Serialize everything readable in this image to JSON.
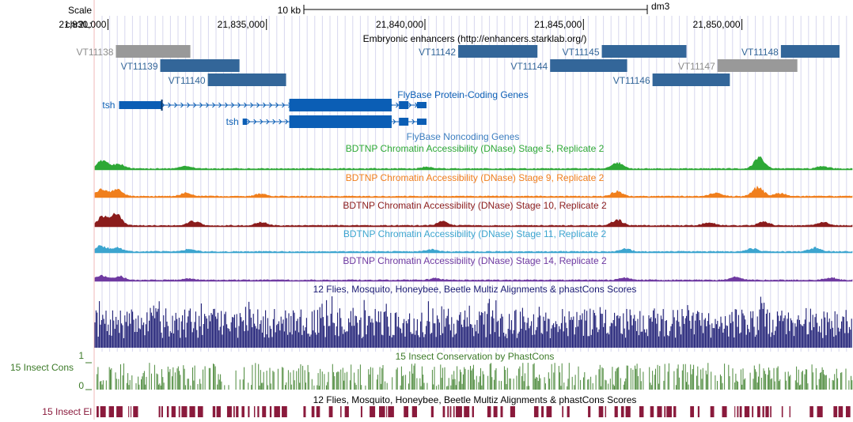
{
  "ruler": {
    "scale_label": "Scale",
    "chrom_label": "chr2L:",
    "scale_bar_text": "10 kb",
    "assembly": "dm3",
    "ticks": [
      {
        "label": "21,830,000",
        "pos": 21830000
      },
      {
        "label": "21,835,000",
        "pos": 21835000
      },
      {
        "label": "21,840,000",
        "pos": 21840000
      },
      {
        "label": "21,845,000",
        "pos": 21845000
      },
      {
        "label": "21,850,000",
        "pos": 21850000
      }
    ]
  },
  "enhancers": {
    "title": "Embryonic enhancers (http://enhancers.starklab.org/)",
    "items": [
      {
        "name": "VT11138",
        "color": "#999999",
        "label_side": "left",
        "row": 0,
        "start": 21830250,
        "end": 21832600
      },
      {
        "name": "VT11139",
        "color": "#336699",
        "label_side": "left",
        "row": 1,
        "start": 21831650,
        "end": 21834150
      },
      {
        "name": "VT11140",
        "color": "#336699",
        "label_side": "left",
        "row": 2,
        "start": 21833150,
        "end": 21835620
      },
      {
        "name": "VT11142",
        "color": "#336699",
        "label_side": "left",
        "row": 0,
        "start": 21841050,
        "end": 21843550
      },
      {
        "name": "VT11144",
        "color": "#336699",
        "label_side": "left",
        "row": 1,
        "start": 21843950,
        "end": 21846380
      },
      {
        "name": "VT11145",
        "color": "#336699",
        "label_side": "left",
        "row": 0,
        "start": 21845580,
        "end": 21848250
      },
      {
        "name": "VT11146",
        "color": "#336699",
        "label_side": "left",
        "row": 2,
        "start": 21847180,
        "end": 21849620
      },
      {
        "name": "VT11147",
        "color": "#999999",
        "label_side": "left",
        "row": 1,
        "start": 21849230,
        "end": 21851750
      },
      {
        "name": "VT11148",
        "color": "#336699",
        "label_side": "left",
        "row": 0,
        "start": 21851230,
        "end": 21853080
      }
    ]
  },
  "genes": {
    "title": "FlyBase Protein-Coding Genes",
    "noncoding_title": "FlyBase Noncoding Genes",
    "color": "#0b5eb5",
    "items": [
      {
        "name": "tsh",
        "thin_start": 21830350,
        "cds_start": 21831700,
        "cds_end": 21839200,
        "thin_end": 21840050,
        "exons": [
          [
            21830350,
            21831700
          ],
          [
            21835720,
            21838950
          ],
          [
            21839180,
            21839480
          ],
          [
            21839750,
            21840050
          ]
        ]
      },
      {
        "name": "tsh",
        "thin_start": 21834250,
        "cds_start": 21834390,
        "cds_end": 21839200,
        "thin_end": 21840050,
        "exons": [
          [
            21834250,
            21834390
          ],
          [
            21835720,
            21838950
          ],
          [
            21839180,
            21839480
          ],
          [
            21839750,
            21840050
          ]
        ]
      }
    ]
  },
  "dnase_tracks": [
    {
      "title": "BDTNP Chromatin Accessibility (DNase) Stage 5, Replicate 2",
      "color": "#2ea836"
    },
    {
      "title": "BDTNP Chromatin Accessibility (DNase) Stage 9, Replicate 2",
      "color": "#f07f1d"
    },
    {
      "title": "BDTNP Chromatin Accessibility (DNase) Stage 10, Replicate 2",
      "color": "#8b1c1c"
    },
    {
      "title": "BDTNP Chromatin Accessibility (DNase) Stage 11, Replicate 2",
      "color": "#3ca5cf"
    },
    {
      "title": "BDTNP Chromatin Accessibility (DNase) Stage 14, Replicate 2",
      "color": "#6f3aa1"
    }
  ],
  "multiz": {
    "title": "12 Flies, Mosquito, Honeybee, Beetle Multiz Alignments & phastCons Scores",
    "color": "#1a1a73"
  },
  "insect_cons": {
    "title": "15 Insect Conservation by PhastCons",
    "side_label": "15 Insect Cons",
    "y_max_label": "1",
    "y_min_label": "0",
    "color": "#4d8a3c",
    "label_color": "#3c7a28"
  },
  "insect_el": {
    "title": "12 Flies, Mosquito, Honeybee, Beetle Multiz Alignments & phastCons Scores",
    "side_label": "15 Insect El",
    "color": "#8a1a3c"
  }
}
